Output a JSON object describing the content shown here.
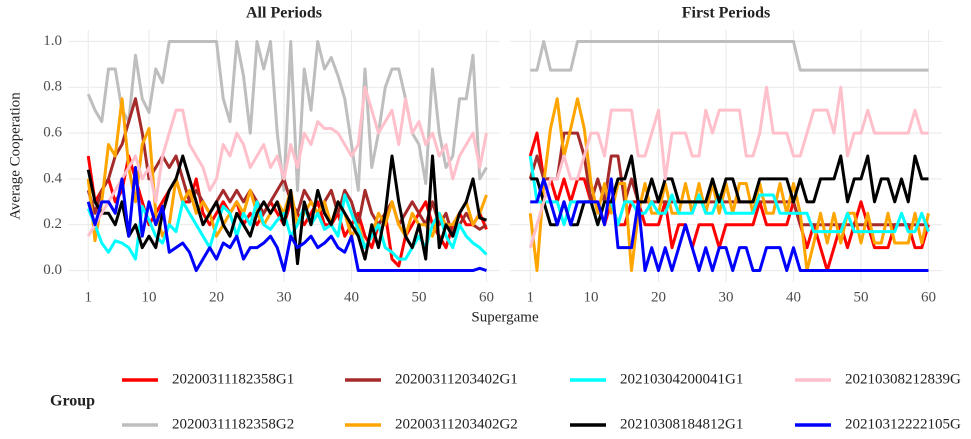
{
  "chart_data": {
    "type": "line",
    "x_label": "Supergame",
    "y_label": "Average Cooperation",
    "legend_title": "Group",
    "legend_position": "bottom",
    "grid": true,
    "x": [
      1,
      2,
      3,
      4,
      5,
      6,
      7,
      8,
      9,
      10,
      11,
      12,
      13,
      14,
      15,
      16,
      17,
      18,
      19,
      20,
      21,
      22,
      23,
      24,
      25,
      26,
      27,
      28,
      29,
      30,
      31,
      32,
      33,
      34,
      35,
      36,
      37,
      38,
      39,
      40,
      41,
      42,
      43,
      44,
      45,
      46,
      47,
      48,
      49,
      50,
      51,
      52,
      53,
      54,
      55,
      56,
      57,
      58,
      59,
      60
    ],
    "xlim": [
      -2,
      62
    ],
    "xticks": [
      1,
      10,
      20,
      30,
      40,
      50,
      60
    ],
    "ylim": [
      -0.05,
      1.05
    ],
    "yticks": [
      {
        "value": 0,
        "label": "0.0"
      },
      0.2,
      0.4,
      0.6,
      0.8,
      {
        "value": 1,
        "label": "1.0"
      }
    ],
    "panels": [
      {
        "title": "All Periods"
      },
      {
        "title": "First Periods"
      }
    ],
    "series": [
      {
        "name": "20200311182358G1",
        "color": "#ff0000",
        "values": [
          [
            0.5,
            0.3,
            0.35,
            0.4,
            0.3,
            0.35,
            0.5,
            0.4,
            0.3,
            0.2,
            0.25,
            0.3,
            0.35,
            0.4,
            0.3,
            0.3,
            0.4,
            0.25,
            0.2,
            0.25,
            0.3,
            0.25,
            0.3,
            0.2,
            0.25,
            0.2,
            0.25,
            0.3,
            0.25,
            0.2,
            0.3,
            0.25,
            0.2,
            0.25,
            0.3,
            0.2,
            0.2,
            0.25,
            0.15,
            0.2,
            0.25,
            0.15,
            0.1,
            0.2,
            0.25,
            0.05,
            0.02,
            0.15,
            0.2,
            0.25,
            0.3,
            0.2,
            0.15,
            0.1,
            0.2,
            0.25,
            0.2,
            0.2,
            0.25,
            0.18
          ],
          [
            0.5,
            0.6,
            0.4,
            0.4,
            0.3,
            0.4,
            0.3,
            0.4,
            0.4,
            0.3,
            0.3,
            0.2,
            0.3,
            0.2,
            0.2,
            0.3,
            0.3,
            0.2,
            0.2,
            0.2,
            0.3,
            0.1,
            0.2,
            0.2,
            0.1,
            0.2,
            0.2,
            0.2,
            0.1,
            0.2,
            0.2,
            0.2,
            0.2,
            0.2,
            0.3,
            0.2,
            0.2,
            0.2,
            0.2,
            0.3,
            0.2,
            0.1,
            0.2,
            0.1,
            0,
            0.1,
            0.2,
            0.1,
            0.2,
            0.3,
            0.2,
            0.1,
            0.1,
            0.1,
            0.2,
            0.2,
            0.2,
            0.1,
            0.1,
            0.2
          ]
        ]
      },
      {
        "name": "20200311182358G2",
        "color": "#bebebe",
        "values": [
          [
            0.77,
            0.7,
            0.65,
            0.88,
            0.88,
            0.7,
            0.65,
            0.94,
            0.75,
            0.69,
            0.88,
            0.82,
            1.0,
            1.0,
            1.0,
            1.0,
            1.0,
            1.0,
            1.0,
            1.0,
            0.75,
            0.65,
            1.0,
            0.85,
            0.6,
            1.0,
            0.88,
            1.0,
            0.6,
            0.35,
            1.0,
            0.35,
            0.88,
            0.7,
            1.0,
            0.88,
            0.93,
            0.85,
            0.75,
            0.55,
            0.35,
            0.88,
            0.45,
            0.6,
            0.8,
            0.88,
            0.88,
            0.75,
            0.6,
            0.55,
            0.38,
            0.88,
            0.6,
            0.45,
            0.5,
            0.75,
            0.75,
            0.94,
            0.4,
            0.45
          ],
          [
            0.875,
            0.875,
            1,
            0.875,
            0.875,
            0.875,
            0.875,
            1,
            1,
            1,
            1,
            1,
            1,
            1,
            1,
            1,
            1,
            1,
            1,
            1,
            1,
            1,
            1,
            1,
            1,
            1,
            1,
            1,
            1,
            1,
            1,
            1,
            1,
            1,
            1,
            1,
            1,
            1,
            1,
            1,
            0.875,
            0.875,
            0.875,
            0.875,
            0.875,
            0.875,
            0.875,
            0.875,
            0.875,
            0.875,
            0.875,
            0.875,
            0.875,
            0.875,
            0.875,
            0.875,
            0.875,
            0.875,
            0.875,
            0.875
          ]
        ]
      },
      {
        "name": "20200311203402G1",
        "color": "#a52a2a",
        "values": [
          [
            0.35,
            0.25,
            0.35,
            0.4,
            0.5,
            0.55,
            0.65,
            0.75,
            0.6,
            0.4,
            0.45,
            0.5,
            0.45,
            0.5,
            0.4,
            0.3,
            0.35,
            0.3,
            0.25,
            0.3,
            0.35,
            0.3,
            0.35,
            0.3,
            0.35,
            0.3,
            0.25,
            0.3,
            0.35,
            0.4,
            0.3,
            0.25,
            0.35,
            0.3,
            0.25,
            0.3,
            0.35,
            0.25,
            0.35,
            0.3,
            0.2,
            0.35,
            0.25,
            0.2,
            0.25,
            0.3,
            0.2,
            0.25,
            0.3,
            0.25,
            0.2,
            0.3,
            0.2,
            0.25,
            0.15,
            0.2,
            0.25,
            0.2,
            0.18,
            0.2
          ],
          [
            0.4,
            0.5,
            0.4,
            0.4,
            0.4,
            0.6,
            0.6,
            0.6,
            0.5,
            0.3,
            0.4,
            0.3,
            0.5,
            0.5,
            0.3,
            0.4,
            0.3,
            0.3,
            0.3,
            0.3,
            0.3,
            0.3,
            0.3,
            0.3,
            0.3,
            0.3,
            0.3,
            0.3,
            0.3,
            0.3,
            0.3,
            0.3,
            0.3,
            0.3,
            0.3,
            0.3,
            0.3,
            0.3,
            0.3,
            0.3,
            0.2,
            0.2,
            0.2,
            0.2,
            0.2,
            0.2,
            0.2,
            0.2,
            0.2,
            0.2,
            0.2,
            0.2,
            0.2,
            0.2,
            0.2,
            0.2,
            0.2,
            0.2,
            0.2,
            0.2
          ]
        ]
      },
      {
        "name": "20200311203402G2",
        "color": "#ffa500",
        "values": [
          [
            0.4,
            0.13,
            0.3,
            0.55,
            0.5,
            0.75,
            0.45,
            0.3,
            0.55,
            0.62,
            0.25,
            0.15,
            0.2,
            0.4,
            0.3,
            0.35,
            0.25,
            0.3,
            0.25,
            0.15,
            0.2,
            0.25,
            0.3,
            0.25,
            0.35,
            0.25,
            0.2,
            0.25,
            0.3,
            0.25,
            0.35,
            0.2,
            0.25,
            0.3,
            0.25,
            0.3,
            0.2,
            0.3,
            0.25,
            0.15,
            0.2,
            0.1,
            0.15,
            0.25,
            0.2,
            0.3,
            0.2,
            0.15,
            0.25,
            0.2,
            0.2,
            0.15,
            0.25,
            0.2,
            0.2,
            0.25,
            0.3,
            0.2,
            0.25,
            0.33
          ],
          [
            0.25,
            0,
            0.38,
            0.62,
            0.75,
            0.5,
            0.62,
            0.75,
            0.62,
            0.38,
            0.25,
            0.38,
            0.25,
            0.38,
            0.38,
            0,
            0.25,
            0.38,
            0.25,
            0.25,
            0.38,
            0.25,
            0.25,
            0.38,
            0.25,
            0.38,
            0.25,
            0.38,
            0.25,
            0.38,
            0.25,
            0.38,
            0.38,
            0.25,
            0.38,
            0.25,
            0.25,
            0.38,
            0.25,
            0.38,
            0.25,
            0,
            0.12,
            0.25,
            0.12,
            0.25,
            0.12,
            0.25,
            0.25,
            0.12,
            0.25,
            0.12,
            0.12,
            0.25,
            0.12,
            0.12,
            0.12,
            0.25,
            0.12,
            0.25
          ]
        ]
      },
      {
        "name": "20210304200041G1",
        "color": "#00ffff",
        "values": [
          [
            0.27,
            0.2,
            0.12,
            0.08,
            0.13,
            0.12,
            0.1,
            0.05,
            0.28,
            0.22,
            0.15,
            0.12,
            0.2,
            0.17,
            0.3,
            0.25,
            0.2,
            0.15,
            0.1,
            0.2,
            0.28,
            0.25,
            0.15,
            0.25,
            0.2,
            0.3,
            0.2,
            0.18,
            0.22,
            0.25,
            0.15,
            0.2,
            0.28,
            0.2,
            0.25,
            0.18,
            0.2,
            0.15,
            0.33,
            0.25,
            0.18,
            0.1,
            0.15,
            0.2,
            0.1,
            0.08,
            0.05,
            0.05,
            0.1,
            0.15,
            0.1,
            0.2,
            0.25,
            0.15,
            0.1,
            0.2,
            0.15,
            0.12,
            0.1,
            0.07
          ],
          [
            0.5,
            0.3,
            0.3,
            0.3,
            0.3,
            0.2,
            0.3,
            0.3,
            0.3,
            0.3,
            0.2,
            0.3,
            0.3,
            0.2,
            0.3,
            0.3,
            0.25,
            0.25,
            0.3,
            0.25,
            0.25,
            0.33,
            0.25,
            0.25,
            0.25,
            0.33,
            0.25,
            0.25,
            0.33,
            0.25,
            0.25,
            0.25,
            0.25,
            0.25,
            0.33,
            0.33,
            0.33,
            0.25,
            0.25,
            0.25,
            0.25,
            0.25,
            0.17,
            0.17,
            0.17,
            0.17,
            0.17,
            0.25,
            0.17,
            0.17,
            0.17,
            0.17,
            0.17,
            0.17,
            0.17,
            0.25,
            0.17,
            0.17,
            0.25,
            0.17
          ]
        ]
      },
      {
        "name": "20210308184812G1",
        "color": "#000000",
        "values": [
          [
            0.44,
            0.3,
            0.25,
            0.25,
            0.2,
            0.3,
            0.15,
            0.2,
            0.1,
            0.15,
            0.1,
            0.25,
            0.35,
            0.4,
            0.5,
            0.4,
            0.3,
            0.2,
            0.25,
            0.3,
            0.2,
            0.15,
            0.25,
            0.2,
            0.15,
            0.25,
            0.3,
            0.25,
            0.3,
            0.2,
            0.35,
            0.03,
            0.3,
            0.2,
            0.35,
            0.25,
            0.2,
            0.3,
            0.25,
            0.2,
            0.15,
            0.05,
            0.2,
            0.1,
            0.25,
            0.5,
            0.3,
            0.15,
            0.1,
            0.2,
            0.05,
            0.5,
            0.1,
            0.2,
            0.15,
            0.25,
            0.3,
            0.4,
            0.23,
            0.22
          ],
          [
            0.4,
            0.4,
            0.3,
            0.2,
            0.2,
            0.3,
            0.2,
            0.2,
            0.3,
            0.3,
            0.2,
            0.3,
            0.3,
            0.4,
            0.4,
            0.5,
            0.3,
            0.3,
            0.4,
            0.3,
            0.4,
            0.4,
            0.3,
            0.3,
            0.3,
            0.3,
            0.3,
            0.4,
            0.3,
            0.4,
            0.4,
            0.3,
            0.3,
            0.3,
            0.4,
            0.4,
            0.4,
            0.4,
            0.4,
            0.3,
            0.4,
            0.3,
            0.3,
            0.4,
            0.4,
            0.4,
            0.5,
            0.3,
            0.4,
            0.4,
            0.5,
            0.3,
            0.4,
            0.4,
            0.3,
            0.4,
            0.3,
            0.5,
            0.4,
            0.4
          ]
        ]
      },
      {
        "name": "20210308212839G",
        "color": "#ffc0cb",
        "values": [
          [
            0.15,
            0.2,
            0.25,
            0.3,
            0.35,
            0.4,
            0.45,
            0.5,
            0.4,
            0.45,
            0.3,
            0.5,
            0.6,
            0.7,
            0.7,
            0.55,
            0.5,
            0.45,
            0.35,
            0.4,
            0.55,
            0.5,
            0.6,
            0.55,
            0.45,
            0.5,
            0.55,
            0.45,
            0.5,
            0.4,
            0.55,
            0.45,
            0.6,
            0.55,
            0.65,
            0.62,
            0.62,
            0.6,
            0.55,
            0.5,
            0.55,
            0.8,
            0.7,
            0.6,
            0.65,
            0.7,
            0.55,
            0.75,
            0.6,
            0.65,
            0.55,
            0.6,
            0.5,
            0.55,
            0.4,
            0.5,
            0.55,
            0.6,
            0.45,
            0.6
          ],
          [
            0.1,
            0.2,
            0.3,
            0.4,
            0.4,
            0.5,
            0.4,
            0.4,
            0.5,
            0.6,
            0.6,
            0.5,
            0.7,
            0.7,
            0.7,
            0.7,
            0.5,
            0.5,
            0.6,
            0.7,
            0.4,
            0.6,
            0.6,
            0.6,
            0.5,
            0.5,
            0.7,
            0.6,
            0.7,
            0.7,
            0.7,
            0.7,
            0.5,
            0.5,
            0.6,
            0.8,
            0.6,
            0.6,
            0.6,
            0.5,
            0.5,
            0.6,
            0.7,
            0.7,
            0.7,
            0.6,
            0.8,
            0.5,
            0.6,
            0.6,
            0.7,
            0.6,
            0.6,
            0.6,
            0.6,
            0.6,
            0.6,
            0.7,
            0.6,
            0.6
          ]
        ]
      },
      {
        "name": "20210312222105G",
        "color": "#0000ff",
        "values": [
          [
            0.3,
            0.2,
            0.3,
            0.3,
            0.25,
            0.4,
            0.15,
            0.45,
            0.15,
            0.3,
            0.2,
            0.28,
            0.08,
            0.1,
            0.12,
            0.08,
            0,
            0.05,
            0.1,
            0.05,
            0.12,
            0.1,
            0.15,
            0.05,
            0.1,
            0.1,
            0.12,
            0.15,
            0.1,
            0,
            0.15,
            0.1,
            0.12,
            0.15,
            0.1,
            0.12,
            0.15,
            0.1,
            0.08,
            0.15,
            0,
            0,
            0,
            0,
            0,
            0,
            0,
            0,
            0,
            0,
            0,
            0,
            0,
            0,
            0,
            0,
            0,
            0,
            0.01,
            0
          ],
          [
            0.3,
            0.3,
            0.4,
            0.3,
            0.2,
            0.3,
            0.2,
            0.3,
            0.3,
            0.3,
            0.3,
            0.2,
            0.4,
            0.1,
            0.1,
            0.1,
            0.3,
            0,
            0.1,
            0,
            0.1,
            0,
            0.1,
            0.2,
            0.1,
            0,
            0.1,
            0,
            0.1,
            0.1,
            0,
            0.1,
            0.1,
            0,
            0,
            0.1,
            0.1,
            0.1,
            0,
            0.1,
            0,
            0,
            0,
            0,
            0,
            0,
            0,
            0,
            0,
            0,
            0,
            0,
            0,
            0,
            0,
            0,
            0,
            0,
            0,
            0
          ]
        ]
      }
    ]
  }
}
